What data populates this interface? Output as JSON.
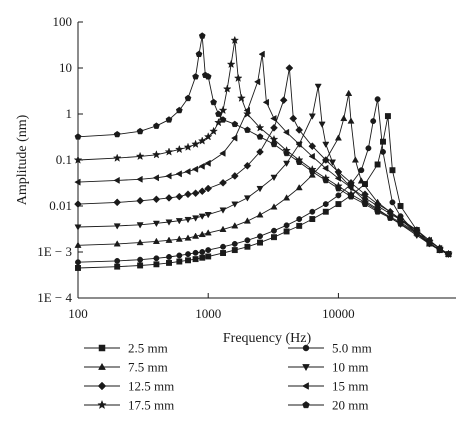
{
  "chart_data": {
    "type": "line",
    "xlabel": "Frequency (Hz)",
    "ylabel": "Amplitude (nm)",
    "x_scale": "log",
    "y_scale": "log",
    "xlim": [
      100,
      80000
    ],
    "ylim": [
      0.0001,
      100
    ],
    "x_ticks": [
      {
        "value": 100,
        "label": "100"
      },
      {
        "value": 1000,
        "label": "1000"
      },
      {
        "value": 10000,
        "label": "10000"
      }
    ],
    "y_ticks": [
      {
        "value": 100,
        "label": "100"
      },
      {
        "value": 10,
        "label": "10"
      },
      {
        "value": 1,
        "label": "1"
      },
      {
        "value": 0.1,
        "label": "0.1"
      },
      {
        "value": 0.01,
        "label": "0.01"
      },
      {
        "value": 0.001,
        "label": "1E − 3"
      },
      {
        "value": 0.0001,
        "label": "1E − 4"
      }
    ],
    "grid": false,
    "legend_position": "bottom",
    "line_color": "#1a1a1a",
    "series": [
      {
        "name": "2.5 mm",
        "marker": "square",
        "x": [
          100,
          200,
          300,
          400,
          500,
          600,
          700,
          800,
          900,
          1000,
          1300,
          1600,
          2000,
          2500,
          3200,
          4000,
          5000,
          6300,
          8000,
          10000,
          12500,
          16000,
          20000,
          22000,
          24000,
          26000,
          30000,
          40000,
          50000,
          60000,
          70000
        ],
        "y": [
          0.00045,
          0.00048,
          0.00051,
          0.00054,
          0.00058,
          0.00062,
          0.00066,
          0.0007,
          0.00075,
          0.0008,
          0.00095,
          0.0011,
          0.0013,
          0.0016,
          0.0021,
          0.0028,
          0.0037,
          0.0052,
          0.0075,
          0.011,
          0.017,
          0.03,
          0.08,
          0.25,
          0.9,
          0.06,
          0.01,
          0.003,
          0.0016,
          0.0011,
          0.0009
        ]
      },
      {
        "name": "5.0 mm",
        "marker": "circle",
        "x": [
          100,
          200,
          300,
          400,
          500,
          600,
          700,
          800,
          900,
          1000,
          1300,
          1600,
          2000,
          2500,
          3200,
          4000,
          5000,
          6300,
          8000,
          10000,
          12500,
          15000,
          17000,
          18500,
          20000,
          22000,
          26000,
          30000,
          40000,
          50000,
          60000,
          70000
        ],
        "y": [
          0.0006,
          0.00064,
          0.00068,
          0.00073,
          0.00078,
          0.00084,
          0.0009,
          0.00096,
          0.001,
          0.0011,
          0.0013,
          0.0015,
          0.0018,
          0.0022,
          0.0029,
          0.0038,
          0.0052,
          0.0075,
          0.011,
          0.017,
          0.03,
          0.06,
          0.18,
          0.7,
          2.1,
          0.15,
          0.012,
          0.006,
          0.0025,
          0.0015,
          0.0011,
          0.0009
        ]
      },
      {
        "name": "7.5 mm",
        "marker": "triangle-up",
        "x": [
          100,
          200,
          300,
          400,
          500,
          600,
          700,
          800,
          900,
          1000,
          1300,
          1600,
          2000,
          2500,
          3200,
          4000,
          5000,
          6300,
          8000,
          10000,
          11000,
          12000,
          12500,
          13500,
          15000,
          20000,
          30000,
          40000,
          50000,
          60000,
          70000
        ],
        "y": [
          0.0014,
          0.0015,
          0.0016,
          0.0017,
          0.0018,
          0.0019,
          0.002,
          0.0022,
          0.0024,
          0.0026,
          0.0031,
          0.0037,
          0.0047,
          0.0064,
          0.0095,
          0.015,
          0.025,
          0.047,
          0.1,
          0.3,
          0.8,
          2.8,
          0.7,
          0.1,
          0.035,
          0.012,
          0.005,
          0.0026,
          0.0015,
          0.0011,
          0.0009
        ]
      },
      {
        "name": "10 mm",
        "marker": "triangle-down",
        "x": [
          100,
          200,
          300,
          400,
          500,
          600,
          700,
          800,
          900,
          1000,
          1300,
          1600,
          2000,
          2500,
          3200,
          4000,
          5000,
          6300,
          7000,
          7500,
          8000,
          9000,
          10000,
          12500,
          16000,
          20000,
          30000,
          40000,
          50000,
          60000,
          70000
        ],
        "y": [
          0.0035,
          0.0037,
          0.0039,
          0.0042,
          0.0045,
          0.0048,
          0.0051,
          0.0055,
          0.006,
          0.0065,
          0.0082,
          0.011,
          0.015,
          0.024,
          0.042,
          0.085,
          0.22,
          0.9,
          4.0,
          0.6,
          0.22,
          0.09,
          0.05,
          0.025,
          0.013,
          0.0085,
          0.004,
          0.0023,
          0.0015,
          0.0011,
          0.0009
        ]
      },
      {
        "name": "12.5 mm",
        "marker": "diamond",
        "x": [
          100,
          200,
          300,
          400,
          500,
          600,
          700,
          800,
          900,
          1000,
          1300,
          1600,
          2000,
          2500,
          3200,
          3800,
          4200,
          4500,
          5000,
          6300,
          8000,
          10000,
          12500,
          16000,
          20000,
          25000,
          30000,
          40000,
          50000,
          60000,
          70000
        ],
        "y": [
          0.011,
          0.012,
          0.013,
          0.014,
          0.015,
          0.016,
          0.018,
          0.019,
          0.021,
          0.024,
          0.032,
          0.045,
          0.075,
          0.15,
          0.5,
          2.0,
          10.0,
          0.8,
          0.45,
          0.2,
          0.1,
          0.055,
          0.032,
          0.018,
          0.011,
          0.0075,
          0.0052,
          0.003,
          0.0018,
          0.0012,
          0.0009
        ]
      },
      {
        "name": "15 mm",
        "marker": "triangle-left",
        "x": [
          100,
          200,
          300,
          400,
          500,
          600,
          700,
          800,
          900,
          1000,
          1300,
          1600,
          2000,
          2400,
          2600,
          2800,
          3200,
          4000,
          5000,
          6300,
          8000,
          10000,
          12500,
          16000,
          20000,
          25000,
          30000,
          40000,
          50000,
          60000,
          70000
        ],
        "y": [
          0.033,
          0.036,
          0.038,
          0.041,
          0.045,
          0.05,
          0.056,
          0.063,
          0.073,
          0.085,
          0.14,
          0.3,
          1.2,
          5.0,
          20.0,
          1.8,
          0.8,
          0.4,
          0.22,
          0.12,
          0.066,
          0.04,
          0.025,
          0.015,
          0.01,
          0.0068,
          0.005,
          0.0029,
          0.0018,
          0.0012,
          0.0009
        ]
      },
      {
        "name": "17.5 mm",
        "marker": "star",
        "x": [
          100,
          200,
          300,
          400,
          500,
          600,
          700,
          800,
          900,
          1000,
          1100,
          1200,
          1300,
          1400,
          1500,
          1600,
          1700,
          1800,
          2000,
          2500,
          3200,
          4000,
          5000,
          6300,
          8000,
          10000,
          12500,
          16000,
          20000,
          25000,
          30000,
          40000,
          50000,
          60000,
          70000
        ],
        "y": [
          0.1,
          0.11,
          0.12,
          0.13,
          0.15,
          0.17,
          0.19,
          0.22,
          0.26,
          0.32,
          0.42,
          0.65,
          1.2,
          3.5,
          12.0,
          40.0,
          6.0,
          2.2,
          1.0,
          0.5,
          0.28,
          0.16,
          0.1,
          0.062,
          0.04,
          0.027,
          0.018,
          0.012,
          0.008,
          0.0058,
          0.0044,
          0.0026,
          0.0017,
          0.0012,
          0.0009
        ]
      },
      {
        "name": "20 mm",
        "marker": "pentagon",
        "x": [
          100,
          200,
          300,
          400,
          500,
          600,
          700,
          800,
          850,
          900,
          950,
          1000,
          1100,
          1200,
          1300,
          1600,
          2000,
          2500,
          3200,
          4000,
          5000,
          6300,
          8000,
          10000,
          12500,
          16000,
          20000,
          25000,
          30000,
          40000,
          50000,
          60000,
          70000
        ],
        "y": [
          0.32,
          0.36,
          0.42,
          0.55,
          0.75,
          1.2,
          2.2,
          6.5,
          20.0,
          50.0,
          7.0,
          6.5,
          1.8,
          1.0,
          0.75,
          0.6,
          0.45,
          0.32,
          0.22,
          0.14,
          0.09,
          0.056,
          0.036,
          0.024,
          0.016,
          0.011,
          0.0075,
          0.0055,
          0.0041,
          0.0025,
          0.0016,
          0.0011,
          0.0009
        ]
      }
    ]
  }
}
